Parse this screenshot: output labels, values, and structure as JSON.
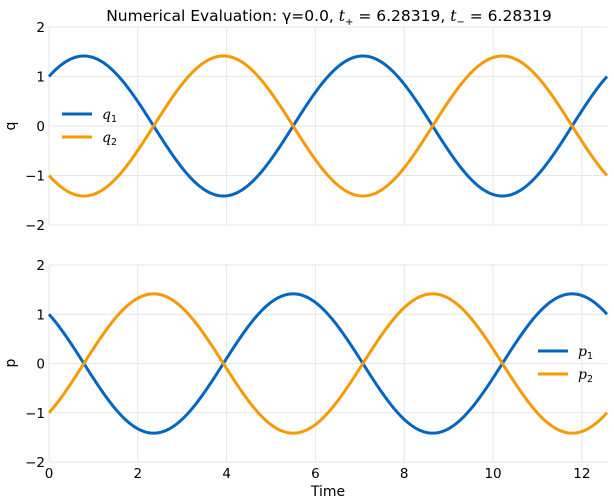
{
  "figure": {
    "title": {
      "prefix": "Numerical Evaluation: γ=0.0, ",
      "t_plus_symbol": "t",
      "t_plus_sub": "+",
      "t_plus_value": " = 6.28319, ",
      "t_minus_symbol": "t",
      "t_minus_sub": "−",
      "t_minus_value": " = 6.28319"
    },
    "xlabel": "Time"
  },
  "chart_data": [
    {
      "type": "line",
      "ylabel": "q",
      "xlim": [
        0,
        12.56637
      ],
      "ylim": [
        -2,
        2
      ],
      "xticks": [
        0,
        2,
        4,
        6,
        8,
        10,
        12
      ],
      "yticks": [
        -2,
        -1,
        0,
        1,
        2
      ],
      "ytick_labels": [
        "−2",
        "−1",
        "0",
        "1",
        "2"
      ],
      "x_tick_labels_visible": false,
      "grid": true,
      "legend_position": "center-left",
      "series": [
        {
          "name": "q",
          "sub": "1",
          "color": "#0066c0",
          "amplitude": 1.41421,
          "phase_deg": 45,
          "period": 6.28319
        },
        {
          "name": "q",
          "sub": "2",
          "color": "#f59a00",
          "amplitude": 1.41421,
          "phase_deg": 225,
          "period": 6.28319
        }
      ]
    },
    {
      "type": "line",
      "ylabel": "p",
      "xlim": [
        0,
        12.56637
      ],
      "ylim": [
        -2,
        2
      ],
      "xticks": [
        0,
        2,
        4,
        6,
        8,
        10,
        12
      ],
      "yticks": [
        -2,
        -1,
        0,
        1,
        2
      ],
      "xtick_labels": [
        "0",
        "2",
        "4",
        "6",
        "8",
        "10",
        "12"
      ],
      "ytick_labels": [
        "−2",
        "−1",
        "0",
        "1",
        "2"
      ],
      "x_tick_labels_visible": true,
      "grid": true,
      "legend_position": "center-right",
      "series": [
        {
          "name": "p",
          "sub": "1",
          "color": "#0066c0",
          "amplitude": 1.41421,
          "phase_deg": 135,
          "period": 6.28319
        },
        {
          "name": "p",
          "sub": "2",
          "color": "#f59a00",
          "amplitude": 1.41421,
          "phase_deg": 315,
          "period": 6.28319
        }
      ]
    }
  ]
}
